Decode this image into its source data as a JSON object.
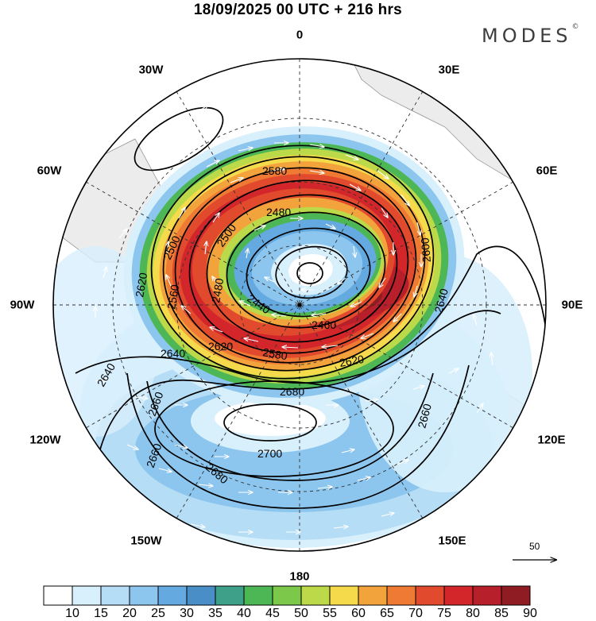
{
  "title": "18/09/2025  00 UTC  + 216 hrs",
  "brand": "MODES",
  "brand_mark": "©",
  "longitude_labels": {
    "lon_0": "0",
    "lon_30e": "30E",
    "lon_60e": "60E",
    "lon_90e": "90E",
    "lon_120e": "120E",
    "lon_150e": "150E",
    "lon_180": "180",
    "lon_150w": "150W",
    "lon_120w": "120W",
    "lon_90w": "90W",
    "lon_60w": "60W",
    "lon_30w": "30W"
  },
  "contour_labels": [
    "2580",
    "2480",
    "2500",
    "2500",
    "2600",
    "2620",
    "2560",
    "2480",
    "2440",
    "2460",
    "2640",
    "2640",
    "2620",
    "2580",
    "2620",
    "2640",
    "2680",
    "2660",
    "2660",
    "2700",
    "2680",
    "2660"
  ],
  "reference_vector_label": "50",
  "colorbar": {
    "labels": [
      "10",
      "15",
      "20",
      "25",
      "30",
      "35",
      "40",
      "45",
      "50",
      "55",
      "60",
      "65",
      "70",
      "75",
      "80",
      "85",
      "90"
    ],
    "colors": [
      "#ffffff",
      "#d8effc",
      "#b5ddf6",
      "#8cc6ee",
      "#64a9df",
      "#4a8ec8",
      "#3fa08a",
      "#4db655",
      "#7cc84a",
      "#bcd949",
      "#f5db4b",
      "#f3a33c",
      "#ef7a34",
      "#e14a2d",
      "#d2262a",
      "#b71f2a",
      "#8f1c22"
    ]
  }
}
